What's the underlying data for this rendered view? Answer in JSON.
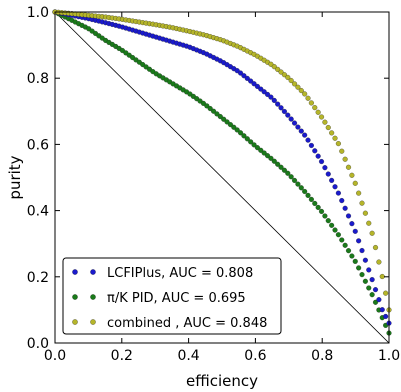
{
  "chart_data": {
    "type": "scatter",
    "title": "",
    "xlabel": "efficiency",
    "ylabel": "purity",
    "xlim": [
      0.0,
      1.0
    ],
    "ylim": [
      0.0,
      1.0
    ],
    "xticks": [
      "0.0",
      "0.2",
      "0.4",
      "0.6",
      "0.8",
      "1.0"
    ],
    "yticks": [
      "0.0",
      "0.2",
      "0.4",
      "0.6",
      "0.8",
      "1.0"
    ],
    "grid": false,
    "legend_position": "bottom-left",
    "reference_line": {
      "x": [
        0.0,
        1.0
      ],
      "y": [
        1.0,
        0.0
      ]
    },
    "series": [
      {
        "name": "LCFIPlus, AUC = 0.808",
        "color": "#1a1acc",
        "x": [
          0.0,
          0.05,
          0.1,
          0.15,
          0.2,
          0.25,
          0.3,
          0.35,
          0.4,
          0.45,
          0.5,
          0.55,
          0.6,
          0.65,
          0.7,
          0.75,
          0.8,
          0.85,
          0.9,
          0.95,
          0.98,
          1.0
        ],
        "y": [
          1.0,
          0.99,
          0.98,
          0.968,
          0.955,
          0.94,
          0.925,
          0.91,
          0.895,
          0.875,
          0.85,
          0.82,
          0.78,
          0.74,
          0.685,
          0.625,
          0.545,
          0.45,
          0.335,
          0.19,
          0.1,
          0.06
        ]
      },
      {
        "name": "π/K PID, AUC = 0.695",
        "color": "#1a7a1a",
        "x": [
          0.0,
          0.05,
          0.1,
          0.15,
          0.2,
          0.25,
          0.3,
          0.35,
          0.4,
          0.45,
          0.5,
          0.55,
          0.6,
          0.65,
          0.7,
          0.75,
          0.8,
          0.85,
          0.9,
          0.95,
          1.0
        ],
        "y": [
          1.0,
          0.975,
          0.95,
          0.915,
          0.885,
          0.85,
          0.815,
          0.785,
          0.755,
          0.72,
          0.68,
          0.64,
          0.595,
          0.555,
          0.51,
          0.455,
          0.395,
          0.325,
          0.245,
          0.145,
          0.03
        ]
      },
      {
        "name": "combined , AUC = 0.848",
        "color": "#b5b52a",
        "x": [
          0.0,
          0.05,
          0.1,
          0.15,
          0.2,
          0.25,
          0.3,
          0.35,
          0.4,
          0.45,
          0.5,
          0.55,
          0.6,
          0.65,
          0.7,
          0.75,
          0.8,
          0.85,
          0.9,
          0.95,
          0.98,
          1.0
        ],
        "y": [
          1.0,
          0.995,
          0.99,
          0.985,
          0.978,
          0.97,
          0.962,
          0.953,
          0.942,
          0.93,
          0.915,
          0.895,
          0.87,
          0.84,
          0.8,
          0.75,
          0.68,
          0.6,
          0.48,
          0.33,
          0.2,
          0.1
        ]
      }
    ]
  }
}
